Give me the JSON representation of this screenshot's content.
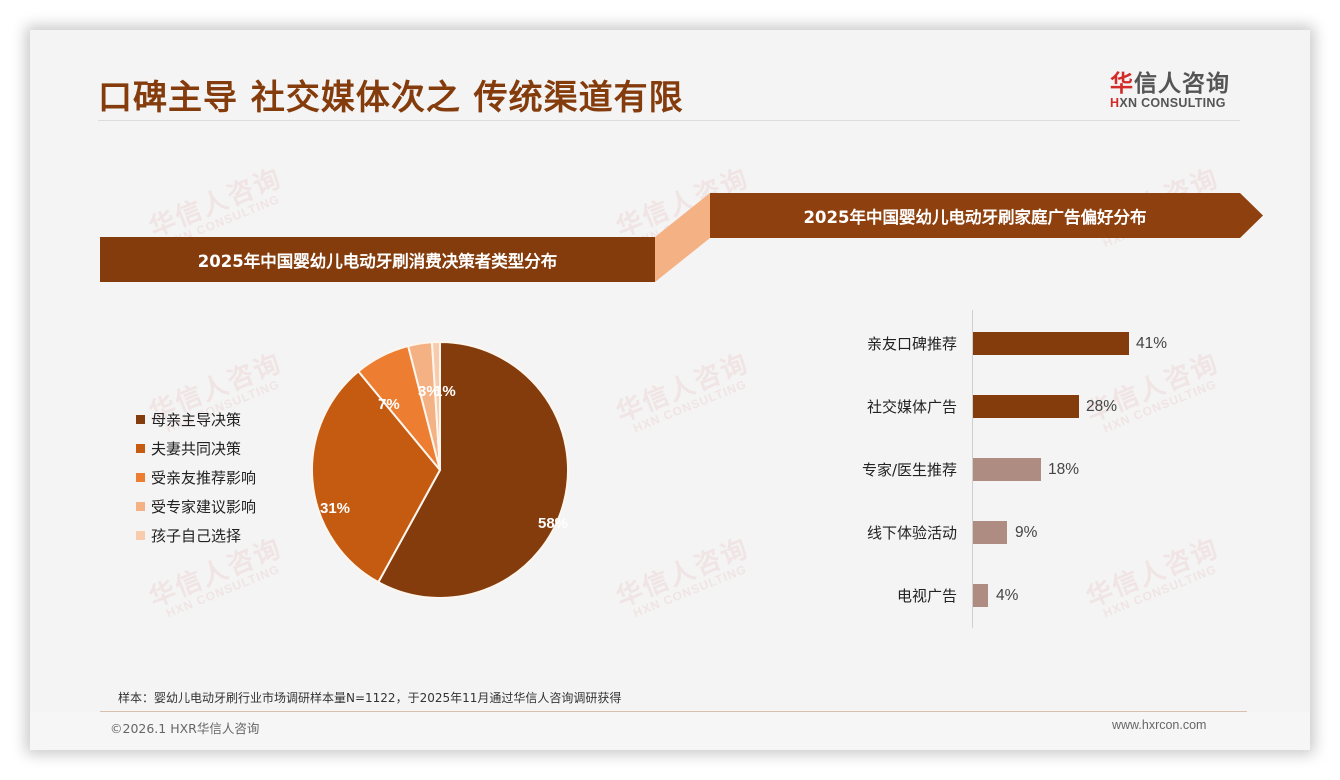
{
  "page": {
    "title": "口碑主导 社交媒体次之 传统渠道有限",
    "logo": {
      "cn_accent": "华",
      "cn_rest": "信人咨询",
      "en_accent": "H",
      "en_rest": "XN CONSULTING"
    },
    "watermark": {
      "cn": "华信人咨询",
      "en": "HXN CONSULTING"
    },
    "source_note": "样本：婴幼儿电动牙刷行业市场调研样本量N=1122，于2025年11月通过华信人咨询调研获得",
    "copyright": "©2026.1 HXR华信人咨询",
    "website": "www.hxrcon.com",
    "colors": {
      "brand_brown": "#843c0c",
      "banner_right": "#8e400f",
      "connector": "#f4b183",
      "title": "#843c0c",
      "bar_dark": "#843c0c",
      "bar_light": "#ae8c82"
    }
  },
  "chart_data": [
    {
      "type": "pie",
      "title": "2025年中国婴幼儿电动牙刷消费决策者类型分布",
      "categories": [
        "母亲主导决策",
        "夫妻共同决策",
        "受亲友推荐影响",
        "受专家建议影响",
        "孩子自己选择"
      ],
      "values": [
        58,
        31,
        7,
        3,
        1
      ],
      "labels": [
        "58%",
        "31%",
        "7%",
        "3%",
        "1%"
      ],
      "colors": [
        "#843c0c",
        "#c55a11",
        "#ed7d31",
        "#f4b183",
        "#f8cbad"
      ],
      "legend_position": "left",
      "unit": "%"
    },
    {
      "type": "bar",
      "orientation": "horizontal",
      "title": "2025年中国婴幼儿电动牙刷家庭广告偏好分布",
      "categories": [
        "亲友口碑推荐",
        "社交媒体广告",
        "专家/医生推荐",
        "线下体验活动",
        "电视广告"
      ],
      "values": [
        41,
        28,
        18,
        9,
        4
      ],
      "labels": [
        "41%",
        "28%",
        "18%",
        "9%",
        "4%"
      ],
      "colors": [
        "#843c0c",
        "#843c0c",
        "#ae8c82",
        "#ae8c82",
        "#ae8c82"
      ],
      "xlim": [
        0,
        45
      ],
      "grid": false,
      "unit": "%"
    }
  ]
}
